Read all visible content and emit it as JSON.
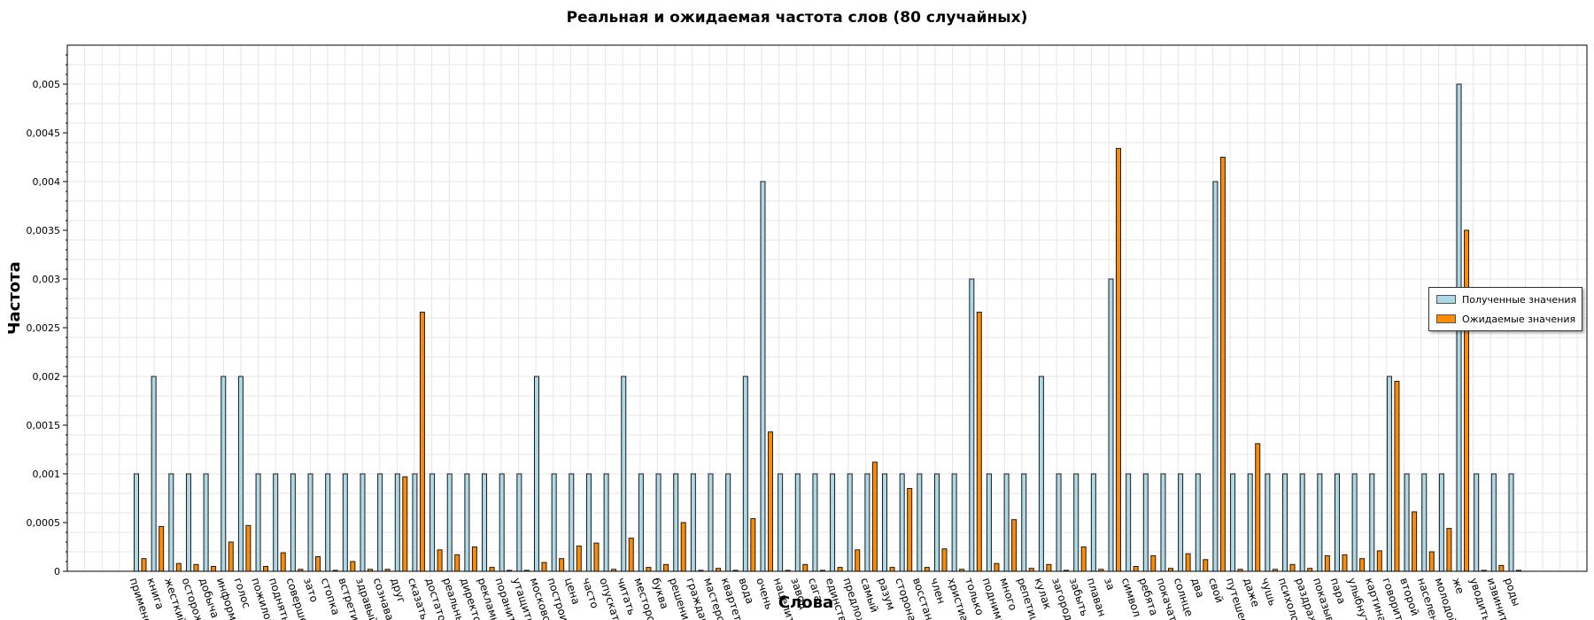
{
  "chart_data": {
    "type": "bar",
    "title": "Реальная и ожидаемая частота слов (80 случайных)",
    "xlabel": "Слова",
    "ylabel": "Частота",
    "ylim": [
      0,
      0.0054
    ],
    "yticks": [
      "0",
      "0,0005",
      "0,001",
      "0,0015",
      "0,002",
      "0,0025",
      "0,003",
      "0,0035",
      "0,004",
      "0,0045",
      "0,005"
    ],
    "grid": true,
    "legend_position": "right",
    "categories": [
      "применен",
      "книга",
      "жесткий",
      "осторожн",
      "добыча",
      "информац",
      "голос",
      "пожилой",
      "поднять",
      "совершенн",
      "зато",
      "стопка",
      "встретить",
      "здравый",
      "сознават",
      "друг",
      "сказать",
      "достаточн",
      "реальный",
      "директор",
      "рекламны",
      "поранить",
      "утащить",
      "московск",
      "построит",
      "цена",
      "часто",
      "опускать",
      "читать",
      "месторожде",
      "буква",
      "решение",
      "гражданс",
      "мастерск",
      "квартет",
      "вода",
      "очень",
      "нацелит",
      "завод",
      "сага",
      "единств",
      "предложи",
      "самый",
      "разум",
      "сторона",
      "восстанов",
      "член",
      "христиан",
      "только",
      "поднимат",
      "много",
      "репетици",
      "кулак",
      "загородн",
      "забыть",
      "плаван",
      "за",
      "символ",
      "ребята",
      "покачат",
      "солнце",
      "два",
      "свой",
      "путешеств",
      "даже",
      "чушь",
      "психологич",
      "раздраже",
      "показыват",
      "пара",
      "улыбнуть",
      "картина",
      "говорит",
      "второй",
      "населени",
      "молодой",
      "же",
      "уводить",
      "извинит",
      "роды"
    ],
    "series": [
      {
        "name": "Полученные значения",
        "color": "#add8e6",
        "values": [
          0.001,
          0.002,
          0.001,
          0.001,
          0.001,
          0.002,
          0.002,
          0.001,
          0.001,
          0.001,
          0.001,
          0.001,
          0.001,
          0.001,
          0.001,
          0.001,
          0.001,
          0.001,
          0.001,
          0.001,
          0.001,
          0.001,
          0.001,
          0.002,
          0.001,
          0.001,
          0.001,
          0.001,
          0.002,
          0.001,
          0.001,
          0.001,
          0.001,
          0.001,
          0.001,
          0.002,
          0.004,
          0.001,
          0.001,
          0.001,
          0.001,
          0.001,
          0.001,
          0.001,
          0.001,
          0.001,
          0.001,
          0.001,
          0.003,
          0.001,
          0.001,
          0.001,
          0.002,
          0.001,
          0.001,
          0.001,
          0.003,
          0.001,
          0.001,
          0.001,
          0.001,
          0.001,
          0.004,
          0.001,
          0.001,
          0.001,
          0.001,
          0.001,
          0.001,
          0.001,
          0.001,
          0.001,
          0.002,
          0.001,
          0.001,
          0.001,
          0.005,
          0.001,
          0.001,
          0.001
        ]
      },
      {
        "name": "Ожидаемые значения",
        "color": "#ff8c00",
        "values": [
          0.00013,
          0.00046,
          8e-05,
          7e-05,
          5e-05,
          0.0003,
          0.00047,
          5e-05,
          0.00019,
          2e-05,
          0.00015,
          1e-05,
          0.0001,
          2e-05,
          2e-05,
          0.00097,
          0.00266,
          0.00022,
          0.00017,
          0.00025,
          4e-05,
          1e-05,
          1e-05,
          9e-05,
          0.00013,
          0.00026,
          0.00029,
          2e-05,
          0.00034,
          4e-05,
          7e-05,
          0.0005,
          1e-05,
          3e-05,
          1e-05,
          0.00054,
          0.00143,
          1e-05,
          7e-05,
          1e-05,
          4e-05,
          0.00022,
          0.00112,
          4e-05,
          0.00085,
          4e-05,
          0.00023,
          2e-05,
          0.00266,
          8e-05,
          0.00053,
          3e-05,
          7e-05,
          1e-05,
          0.00025,
          2e-05,
          0.00434,
          5e-05,
          0.00016,
          3e-05,
          0.00018,
          0.00012,
          0.00425,
          2e-05,
          0.00131,
          2e-05,
          7e-05,
          3e-05,
          0.00016,
          0.00017,
          0.00013,
          0.00021,
          0.00195,
          0.00061,
          0.0002,
          0.00044,
          0.0035,
          1e-05,
          6e-05,
          1e-05
        ]
      }
    ]
  }
}
